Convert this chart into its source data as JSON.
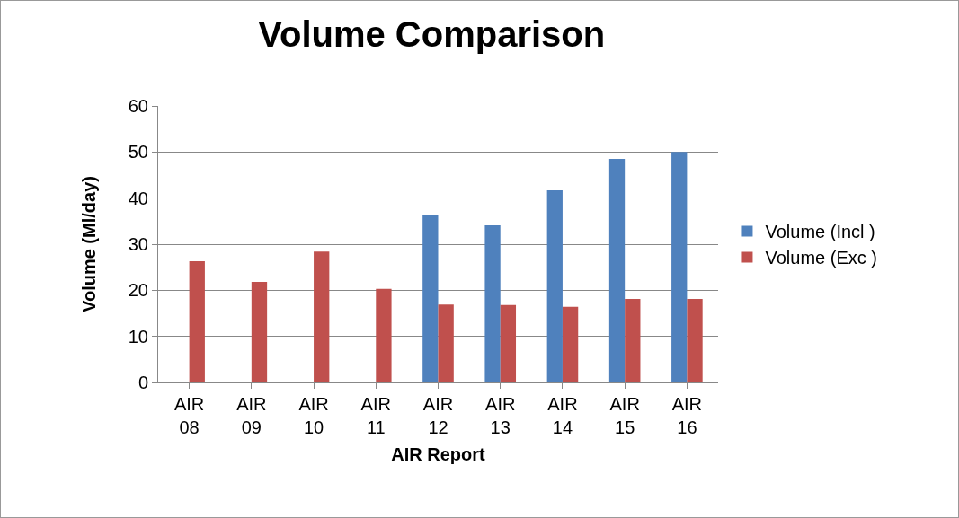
{
  "chart_data": {
    "type": "bar",
    "title": "Volume Comparison",
    "xlabel": "AIR Report",
    "ylabel": "Volume (Ml/day)",
    "categories": [
      "AIR 08",
      "AIR 09",
      "AIR 10",
      "AIR 11",
      "AIR 12",
      "AIR 13",
      "AIR 14",
      "AIR 15",
      "AIR 16"
    ],
    "series": [
      {
        "name": "Volume (Incl )",
        "color": "#4f81bd",
        "values": [
          null,
          null,
          null,
          null,
          36.4,
          34.1,
          41.7,
          48.5,
          50
        ]
      },
      {
        "name": "Volume (Exc )",
        "color": "#c0504d",
        "values": [
          26.3,
          21.8,
          28.4,
          20.3,
          16.9,
          16.8,
          16.4,
          18.1,
          18.1
        ]
      }
    ],
    "ylim": [
      0,
      60
    ],
    "yticks": [
      0,
      10,
      20,
      30,
      40,
      50,
      60
    ],
    "grid": "y",
    "legend": "right"
  }
}
